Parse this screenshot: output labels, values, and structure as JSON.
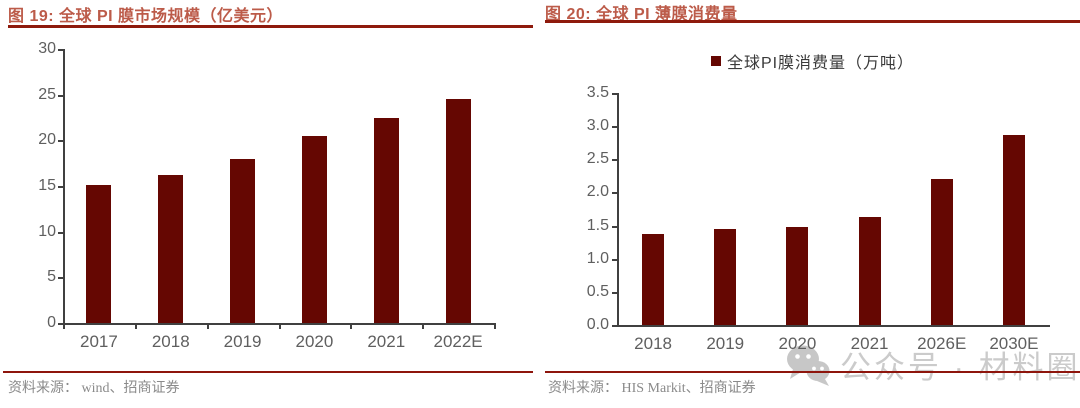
{
  "colors": {
    "bar": "#650702",
    "title_text": "#bc5b49",
    "title_rule": "#8e1a0c",
    "footer_rule": "#8e150c",
    "axis": "#404040",
    "tick_label": "#5f5f5f",
    "source_text": "#8a8a8a",
    "watermark": "#c6c6c6"
  },
  "chart_data": [
    {
      "type": "bar",
      "title": "图 19: 全球 PI 膜市场规模（亿美元）",
      "categories": [
        "2017",
        "2018",
        "2019",
        "2020",
        "2021",
        "2022E"
      ],
      "values": [
        15.1,
        16.2,
        18.0,
        20.5,
        22.5,
        24.5
      ],
      "ylim": [
        0,
        30
      ],
      "yticks": [
        0,
        5,
        10,
        15,
        20,
        25,
        30
      ],
      "ytick_labels": [
        "0",
        "5",
        "10",
        "15",
        "20",
        "25",
        "30"
      ],
      "legend": null,
      "grid": false,
      "legend_position": "none",
      "source": "资料来源： wind、招商证券"
    },
    {
      "type": "bar",
      "title": "图 20: 全球 PI 薄膜消费量",
      "categories": [
        "2018",
        "2019",
        "2020",
        "2021",
        "2026E",
        "2030E"
      ],
      "values": [
        1.38,
        1.45,
        1.48,
        1.63,
        2.2,
        2.87
      ],
      "ylim": [
        0,
        3.5
      ],
      "yticks": [
        0,
        0.5,
        1,
        1.5,
        2,
        2.5,
        3,
        3.5
      ],
      "ytick_labels": [
        "0.0",
        "0.5",
        "1.0",
        "1.5",
        "2.0",
        "2.5",
        "3.0",
        "3.5"
      ],
      "legend": "全球PI膜消费量（万吨）",
      "grid": false,
      "legend_position": "top-center",
      "source": "资料来源： HIS Markit、招商证券"
    }
  ],
  "watermark": {
    "icon": "wechat-icon",
    "text": "公众号 · 材料圈"
  }
}
